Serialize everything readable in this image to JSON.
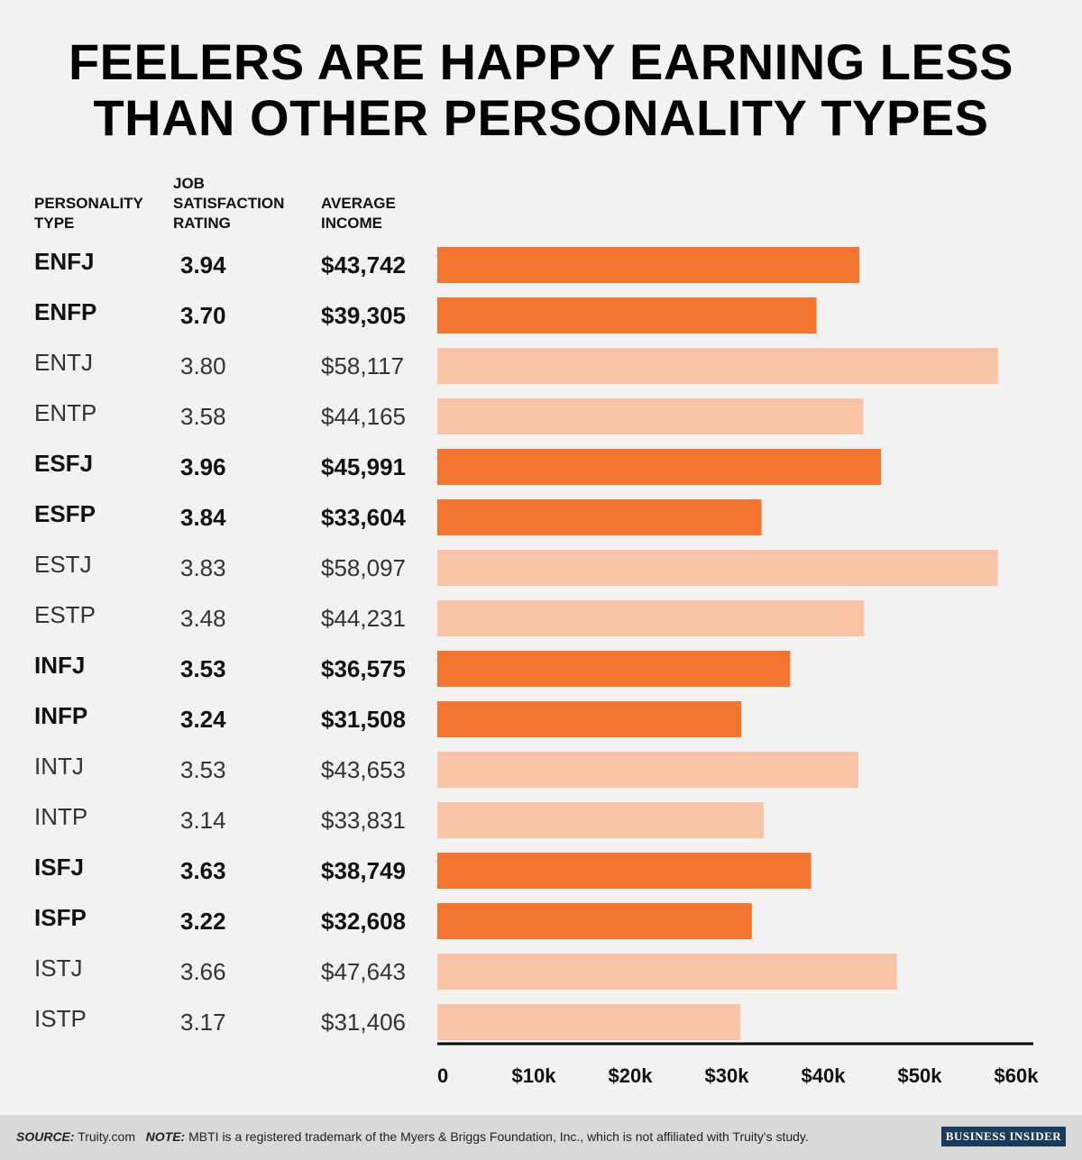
{
  "title": {
    "line1": "FEELERS ARE HAPPY EARNING LESS",
    "line2": "THAN OTHER PERSONALITY TYPES"
  },
  "headers": {
    "type_line1": "PERSONALITY",
    "type_line2": "TYPE",
    "rating_line1": "JOB",
    "rating_line2": "SATISFACTION",
    "rating_line3": "RATING",
    "income_line1": "AVERAGE",
    "income_line2": "INCOME"
  },
  "colors": {
    "feeler": "#f47530",
    "other": "#f9c3a5",
    "text": "#111111",
    "axis": "#000000"
  },
  "chart_data": {
    "type": "bar",
    "orientation": "horizontal",
    "categories": [
      "ENFJ",
      "ENFP",
      "ENTJ",
      "ENTP",
      "ESFJ",
      "ESFP",
      "ESTJ",
      "ESTP",
      "INFJ",
      "INFP",
      "INTJ",
      "INTP",
      "ISFJ",
      "ISFP",
      "ISTJ",
      "ISTP"
    ],
    "values": [
      43742,
      39305,
      58117,
      44165,
      45991,
      33604,
      58097,
      44231,
      36575,
      31508,
      43653,
      33831,
      38749,
      32608,
      47643,
      31406
    ],
    "income_labels": [
      "$43,742",
      "$39,305",
      "$58,117",
      "$44,165",
      "$45,991",
      "$33,604",
      "$58,097",
      "$44,231",
      "$36,575",
      "$31,508",
      "$43,653",
      "$33,831",
      "$38,749",
      "$32,608",
      "$47,643",
      "$31,406"
    ],
    "ratings": [
      "3.94",
      "3.70",
      "3.80",
      "3.58",
      "3.96",
      "3.84",
      "3.83",
      "3.48",
      "3.53",
      "3.24",
      "3.53",
      "3.14",
      "3.63",
      "3.22",
      "3.66",
      "3.17"
    ],
    "feeler": [
      true,
      true,
      false,
      false,
      true,
      true,
      false,
      false,
      true,
      true,
      false,
      false,
      true,
      true,
      false,
      false
    ],
    "xlim": [
      0,
      60000
    ],
    "xticks": [
      0,
      10000,
      20000,
      30000,
      40000,
      50000,
      60000
    ],
    "xtick_labels": [
      "0",
      "$10k",
      "$20k",
      "$30k",
      "$40k",
      "$50k",
      "$60k"
    ],
    "grid": false,
    "legend": "none"
  },
  "footer": {
    "source_label": "SOURCE:",
    "source_text": "Truity.com",
    "note_label": "NOTE:",
    "note_text": "MBTI is a registered trademark of the Myers & Briggs Foundation, Inc., which is not affiliated with Truity's study.",
    "logo": "BUSINESS INSIDER"
  }
}
